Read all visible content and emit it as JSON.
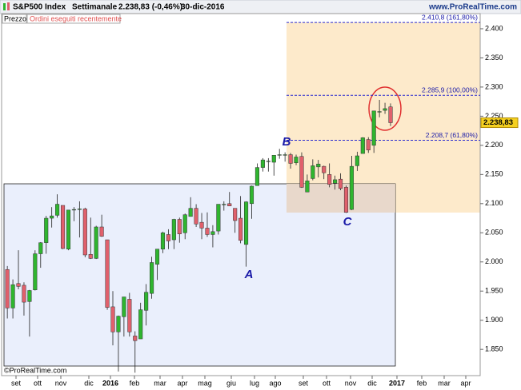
{
  "chart_data": {
    "type": "candlestick",
    "title": "S&P500 Index",
    "subtitle": "Settimanale",
    "header_price": "2.238,83 (-0,46%)",
    "date": "30-dic-2016",
    "source": "www.ProRealTime.com",
    "copyright": "©ProRealTime.com",
    "panel_label": "Prezzo",
    "tab_label": "Ordini eseguiti recentemente",
    "x_labels": [
      "set",
      "ott",
      "nov",
      "dic",
      "2016",
      "feb",
      "mar",
      "apr",
      "mag",
      "giu",
      "lug",
      "ago",
      "set",
      "ott",
      "nov",
      "dic",
      "2017",
      "feb",
      "mar",
      "apr"
    ],
    "up_color": "#2fb52f",
    "down_color": "#e0606c",
    "open": [
      1987,
      1921,
      1963,
      1960,
      1932,
      1952,
      2014,
      2033,
      2075,
      2080,
      2097,
      2022,
      2089,
      2090,
      2091,
      2013,
      2006,
      2060,
      2038,
      1923,
      1880,
      1906,
      1936,
      1873,
      1868,
      1917,
      1946,
      1996,
      2022,
      2047,
      2038,
      2073,
      2050,
      2078,
      2092,
      2068,
      2058,
      2047,
      2053,
      2099,
      2100,
      2092,
      2075,
      2030,
      2100,
      2131,
      2162,
      2173,
      2171,
      2183,
      2183,
      2184,
      2170,
      2181,
      2120,
      2143,
      2163,
      2164,
      2150,
      2135,
      2142,
      2128,
      2090,
      2165,
      2186,
      2210,
      2200,
      2258,
      2260,
      2266
    ],
    "high": [
      1993,
      1970,
      2020,
      1965,
      1952,
      2020,
      2034,
      2079,
      2094,
      2116,
      2097,
      2089,
      2094,
      2104,
      2093,
      2076,
      2062,
      2081,
      2038,
      1950,
      1908,
      1940,
      1947,
      1881,
      1930,
      1962,
      2009,
      2022,
      2052,
      2056,
      2074,
      2076,
      2083,
      2111,
      2099,
      2084,
      2085,
      2063,
      2099,
      2104,
      2120,
      2092,
      2113,
      2104,
      2131,
      2169,
      2178,
      2178,
      2182,
      2194,
      2188,
      2187,
      2184,
      2188,
      2150,
      2176,
      2175,
      2165,
      2169,
      2148,
      2152,
      2131,
      2182,
      2189,
      2214,
      2214,
      2259,
      2278,
      2273,
      2272
    ],
    "low": [
      1903,
      1903,
      1953,
      1908,
      1872,
      1951,
      1990,
      2014,
      2059,
      2076,
      2022,
      2020,
      2070,
      2042,
      2008,
      2005,
      2005,
      2043,
      1918,
      1857,
      1812,
      1872,
      1872,
      1810,
      1868,
      1891,
      1937,
      1969,
      2015,
      2022,
      2022,
      2033,
      2039,
      2078,
      2060,
      2039,
      2043,
      2025,
      2047,
      2088,
      2097,
      2050,
      2032,
      1992,
      2074,
      2131,
      2155,
      2155,
      2148,
      2177,
      2172,
      2160,
      2166,
      2127,
      2120,
      2140,
      2145,
      2142,
      2128,
      2124,
      2123,
      2084,
      2089,
      2156,
      2186,
      2187,
      2187,
      2248,
      2254,
      2233
    ],
    "close": [
      1921,
      1961,
      1958,
      1931,
      1951,
      2014,
      2033,
      2075,
      2079,
      2099,
      2023,
      2089,
      2090,
      2091,
      2012,
      2006,
      2060,
      2044,
      1922,
      1880,
      1907,
      1940,
      1880,
      1865,
      1918,
      1948,
      1999,
      2022,
      2050,
      2036,
      2073,
      2048,
      2081,
      2092,
      2065,
      2058,
      2047,
      2052,
      2099,
      2099,
      2096,
      2071,
      2037,
      2103,
      2130,
      2162,
      2175,
      2173,
      2183,
      2184,
      2184,
      2169,
      2180,
      2128,
      2139,
      2165,
      2168,
      2153,
      2133,
      2141,
      2126,
      2085,
      2164,
      2182,
      2213,
      2192,
      2259,
      2258,
      2263,
      2238.83
    ],
    "ylim": [
      1805,
      2426
    ],
    "yticks": [
      {
        "value": 1850,
        "label": "1.850"
      },
      {
        "value": 1900,
        "label": "1.900"
      },
      {
        "value": 1950,
        "label": "1.950"
      },
      {
        "value": 2000,
        "label": "2.000"
      },
      {
        "value": 2050,
        "label": "2.050"
      },
      {
        "value": 2100,
        "label": "2.100"
      },
      {
        "value": 2150,
        "label": "2.150"
      },
      {
        "value": 2200,
        "label": "2.200"
      },
      {
        "value": 2250,
        "label": "2.250"
      },
      {
        "value": 2300,
        "label": "2.300"
      },
      {
        "value": 2350,
        "label": "2.350"
      },
      {
        "value": 2400,
        "label": "2.400"
      }
    ],
    "levels": [
      {
        "value": 2410.8,
        "label": "2.410,8 (161,80%)"
      },
      {
        "value": 2285.9,
        "label": "2.285,9 (100,00%)"
      },
      {
        "value": 2208.7,
        "label": "2.208,7 (61,80%)"
      }
    ],
    "last_price": {
      "value": 2238.83,
      "label": "2.238,83"
    },
    "annotations": [
      "A",
      "B",
      "C"
    ]
  }
}
